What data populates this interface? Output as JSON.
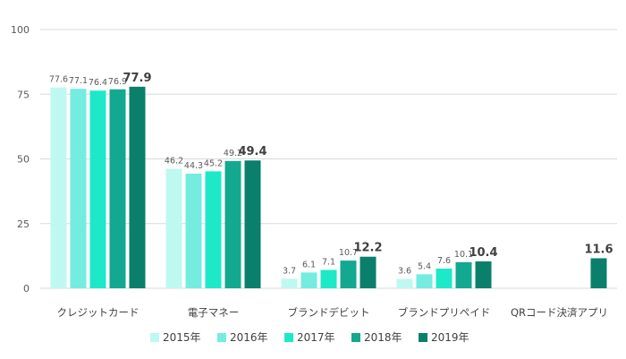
{
  "chart_data": {
    "type": "bar",
    "categories": [
      "クレジットカード",
      "電子マネー",
      "ブランドデビット",
      "ブランドプリペイド",
      "QRコード決済アプリ"
    ],
    "series": [
      {
        "name": "2015年",
        "color": "#bff8f0",
        "values": [
          77.6,
          46.2,
          3.7,
          3.6,
          null
        ]
      },
      {
        "name": "2016年",
        "color": "#74ece0",
        "values": [
          77.1,
          44.3,
          6.1,
          5.4,
          null
        ]
      },
      {
        "name": "2017年",
        "color": "#1de9c9",
        "values": [
          76.4,
          45.2,
          7.1,
          7.6,
          null
        ]
      },
      {
        "name": "2018年",
        "color": "#13a890",
        "values": [
          76.9,
          49.2,
          10.7,
          10.1,
          null
        ]
      },
      {
        "name": "2019年",
        "color": "#0a7f6c",
        "values": [
          77.9,
          49.4,
          12.2,
          10.4,
          11.6
        ]
      }
    ],
    "value_labels": [
      [
        "77.6",
        "46.2",
        "3.7",
        "3.6",
        ""
      ],
      [
        "77.1",
        "44.3",
        "6.1",
        "5.4",
        ""
      ],
      [
        "76.4",
        "45.2",
        "7.1",
        "7.6",
        ""
      ],
      [
        "76.9",
        "49.2",
        "10.7",
        "10.1",
        ""
      ],
      [
        "77.9",
        "49.4",
        "12.2",
        "10.4",
        "11.6"
      ]
    ],
    "yticks": [
      "0",
      "25",
      "50",
      "75",
      "100"
    ],
    "ylim": [
      0,
      100
    ],
    "grid": true,
    "legend_position": "bottom"
  }
}
